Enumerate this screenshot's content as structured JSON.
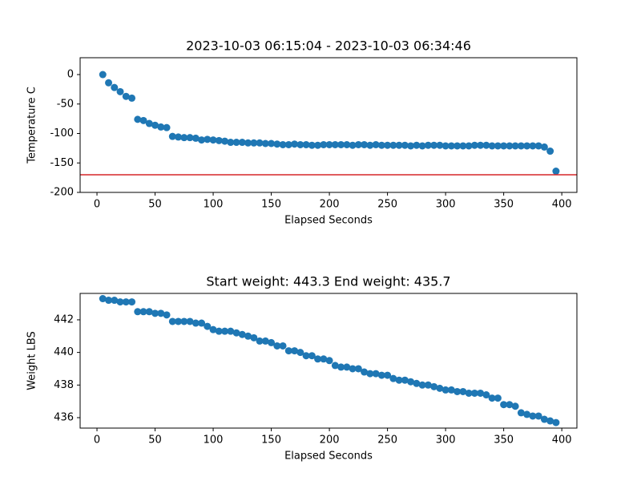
{
  "chart_data": [
    {
      "type": "scatter",
      "title": "2023-10-03 06:15:04 - 2023-10-03 06:34:46",
      "xlabel": "Elapsed Seconds",
      "ylabel": "Temperature C",
      "color": "#1f77b4",
      "x": [
        5,
        10,
        15,
        20,
        25,
        30,
        35,
        40,
        45,
        50,
        55,
        60,
        65,
        70,
        75,
        80,
        85,
        90,
        95,
        100,
        105,
        110,
        115,
        120,
        125,
        130,
        135,
        140,
        145,
        150,
        155,
        160,
        165,
        170,
        175,
        180,
        185,
        190,
        195,
        200,
        205,
        210,
        215,
        220,
        225,
        230,
        235,
        240,
        245,
        250,
        255,
        260,
        265,
        270,
        275,
        280,
        285,
        290,
        295,
        300,
        305,
        310,
        315,
        320,
        325,
        330,
        335,
        340,
        345,
        350,
        355,
        360,
        365,
        370,
        375,
        380,
        385,
        390,
        395
      ],
      "values": [
        0,
        -14,
        -22,
        -29,
        -37,
        -40,
        -76,
        -78,
        -83,
        -86,
        -89,
        -90,
        -105,
        -106,
        -107,
        -107,
        -108,
        -111,
        -110,
        -111,
        -112,
        -113,
        -115,
        -115,
        -115,
        -116,
        -116,
        -116,
        -117,
        -117,
        -118,
        -119,
        -119,
        -118,
        -119,
        -119,
        -120,
        -120,
        -119,
        -119,
        -119,
        -119,
        -119,
        -120,
        -119,
        -119,
        -120,
        -119,
        -120,
        -120,
        -120,
        -120,
        -120,
        -121,
        -120,
        -121,
        -120,
        -120,
        -120,
        -121,
        -121,
        -121,
        -121,
        -121,
        -120,
        -120,
        -120,
        -121,
        -121,
        -121,
        -121,
        -121,
        -121,
        -121,
        -121,
        -121,
        -123,
        -130,
        -164
      ],
      "xlim": [
        -14.5,
        413
      ],
      "ylim": [
        -200,
        28.6
      ],
      "xticks": [
        0,
        50,
        100,
        150,
        200,
        250,
        300,
        350,
        400
      ],
      "yticks": [
        -200,
        -150,
        -100,
        -50,
        0
      ],
      "hline": -170,
      "hline_color": "#d62728"
    },
    {
      "type": "scatter",
      "title": "Start weight: 443.3 End weight: 435.7",
      "xlabel": "Elapsed Seconds",
      "ylabel": "Weight LBS",
      "color": "#1f77b4",
      "x": [
        5,
        10,
        15,
        20,
        25,
        30,
        35,
        40,
        45,
        50,
        55,
        60,
        65,
        70,
        75,
        80,
        85,
        90,
        95,
        100,
        105,
        110,
        115,
        120,
        125,
        130,
        135,
        140,
        145,
        150,
        155,
        160,
        165,
        170,
        175,
        180,
        185,
        190,
        195,
        200,
        205,
        210,
        215,
        220,
        225,
        230,
        235,
        240,
        245,
        250,
        255,
        260,
        265,
        270,
        275,
        280,
        285,
        290,
        295,
        300,
        305,
        310,
        315,
        320,
        325,
        330,
        335,
        340,
        345,
        350,
        355,
        360,
        365,
        370,
        375,
        380,
        385,
        390,
        395
      ],
      "values": [
        443.3,
        443.2,
        443.2,
        443.1,
        443.1,
        443.1,
        442.5,
        442.5,
        442.5,
        442.4,
        442.4,
        442.3,
        441.9,
        441.9,
        441.9,
        441.9,
        441.8,
        441.8,
        441.6,
        441.4,
        441.3,
        441.3,
        441.3,
        441.2,
        441.1,
        441.0,
        440.9,
        440.7,
        440.7,
        440.6,
        440.4,
        440.4,
        440.1,
        440.1,
        440.0,
        439.8,
        439.8,
        439.6,
        439.6,
        439.5,
        439.2,
        439.1,
        439.1,
        439.0,
        439.0,
        438.8,
        438.7,
        438.7,
        438.6,
        438.6,
        438.4,
        438.3,
        438.3,
        438.2,
        438.1,
        438.0,
        438.0,
        437.9,
        437.8,
        437.7,
        437.7,
        437.6,
        437.6,
        437.5,
        437.5,
        437.5,
        437.4,
        437.2,
        437.2,
        436.8,
        436.8,
        436.7,
        436.3,
        436.2,
        436.1,
        436.1,
        435.9,
        435.8,
        435.7
      ],
      "xlim": [
        -14.5,
        413
      ],
      "ylim": [
        435.36,
        443.62
      ],
      "xticks": [
        0,
        50,
        100,
        150,
        200,
        250,
        300,
        350,
        400
      ],
      "yticks": [
        436,
        438,
        440,
        442
      ]
    }
  ]
}
